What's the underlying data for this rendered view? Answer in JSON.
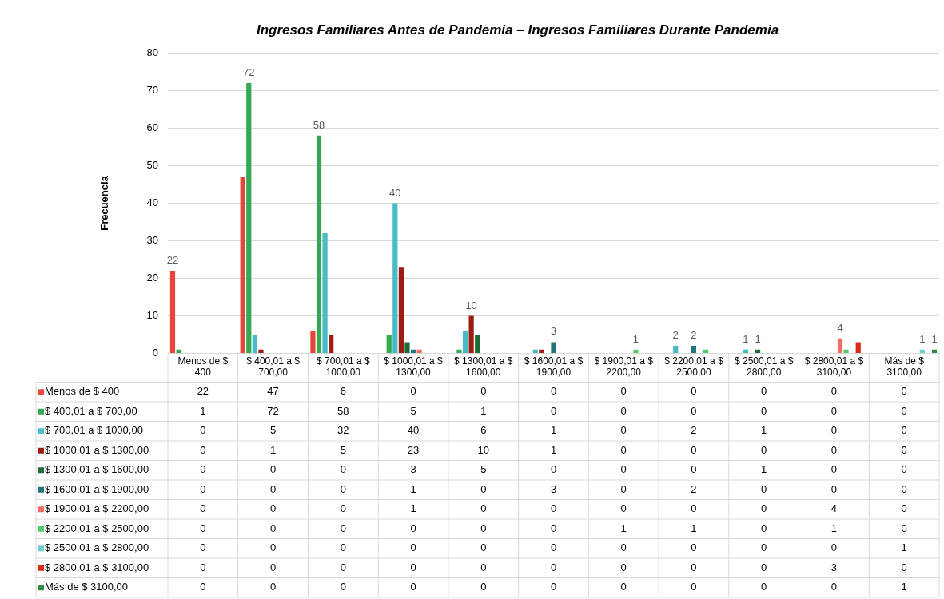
{
  "chart_data": {
    "type": "bar",
    "title": "Ingresos Familiares Antes de Pandemia – Ingresos Familiares Durante Pandemia",
    "ylabel": "Frecuencia",
    "categories": [
      "Menos de $ 400",
      "$ 400,01 a $ 700,00",
      "$ 700,01 a $ 1000,00",
      "$ 1000,01 a $ 1300,00",
      "$ 1300,01 a $ 1600,00",
      "$ 1600,01 a $ 1900,00",
      "$ 1900,01 a $ 2200,00",
      "$ 2200,01 a $ 2500,00",
      "$ 2500,01 a $ 2800,00",
      "$ 2800,01 a $ 3100,00",
      "Más de $ 3100,00"
    ],
    "series": [
      {
        "name": "Menos de $ 400",
        "color": "#e8453c",
        "values": [
          22,
          47,
          6,
          0,
          0,
          0,
          0,
          0,
          0,
          0,
          0
        ]
      },
      {
        "name": "$ 400,01 a $ 700,00",
        "color": "#34a853",
        "values": [
          1,
          72,
          58,
          5,
          1,
          0,
          0,
          0,
          0,
          0,
          0
        ]
      },
      {
        "name": "$ 700,01 a $ 1000,00",
        "color": "#46bdc6",
        "values": [
          0,
          5,
          32,
          40,
          6,
          1,
          0,
          2,
          1,
          0,
          0
        ]
      },
      {
        "name": "$ 1000,01 a $ 1300,00",
        "color": "#9c1c14",
        "values": [
          0,
          1,
          5,
          23,
          10,
          1,
          0,
          0,
          0,
          0,
          0
        ]
      },
      {
        "name": "$ 1300,01 a $ 1600,00",
        "color": "#1f6b35",
        "values": [
          0,
          0,
          0,
          3,
          5,
          0,
          0,
          0,
          1,
          0,
          0
        ]
      },
      {
        "name": "$ 1600,01 a $ 1900,00",
        "color": "#22737a",
        "values": [
          0,
          0,
          0,
          1,
          0,
          3,
          0,
          2,
          0,
          0,
          0
        ]
      },
      {
        "name": "$ 1900,01 a $ 2200,00",
        "color": "#f06b63",
        "values": [
          0,
          0,
          0,
          1,
          0,
          0,
          0,
          0,
          0,
          4,
          0
        ]
      },
      {
        "name": "$ 2200,01 a $ 2500,00",
        "color": "#4fcb6d",
        "values": [
          0,
          0,
          0,
          0,
          0,
          0,
          1,
          1,
          0,
          1,
          0
        ]
      },
      {
        "name": "$ 2500,01 a $ 2800,00",
        "color": "#6bcdd4",
        "values": [
          0,
          0,
          0,
          0,
          0,
          0,
          0,
          0,
          0,
          0,
          1
        ]
      },
      {
        "name": "$ 2800,01 a $ 3100,00",
        "color": "#d92a1c",
        "values": [
          0,
          0,
          0,
          0,
          0,
          0,
          0,
          0,
          0,
          3,
          0
        ]
      },
      {
        "name": "Más de $ 3100,00",
        "color": "#2e8b48",
        "values": [
          0,
          0,
          0,
          0,
          0,
          0,
          0,
          0,
          0,
          0,
          1
        ]
      }
    ],
    "annotations": [
      "22",
      "72",
      "58",
      "40",
      "10",
      "3",
      "1",
      "2",
      "2",
      "1",
      "1",
      "4",
      "1",
      "1"
    ],
    "ylim": [
      0,
      80
    ],
    "yticks": [
      0,
      10,
      20,
      30,
      40,
      50,
      60,
      70,
      80
    ],
    "grid": "y",
    "legend": "bottom",
    "data_labels": true
  }
}
